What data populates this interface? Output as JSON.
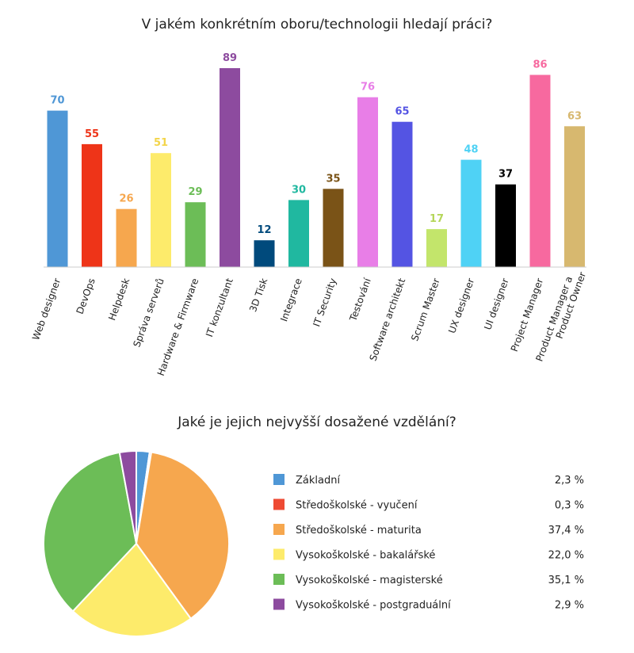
{
  "chart_data": [
    {
      "type": "bar",
      "title": "V jakém konkrétním oboru/technologii hledají práci?",
      "categories": [
        "Web designer",
        "DevOps",
        "Helpdesk",
        "Správa serverů",
        "Hardware & Firmware",
        "IT konzultant",
        "3D Tisk",
        "Integrace",
        "IT Security",
        "Testování",
        "Software architekt",
        "Scrum Master",
        "UX designer",
        "UI designer",
        "Project Manager",
        "Product Manager a Product Owner"
      ],
      "values": [
        70,
        55,
        26,
        51,
        29,
        89,
        12,
        30,
        35,
        76,
        65,
        17,
        48,
        37,
        86,
        63
      ],
      "colors": [
        "#4f97d6",
        "#ee3418",
        "#f6a74e",
        "#fdeb6b",
        "#6cbd57",
        "#8d4b9f",
        "#004a7c",
        "#20b8a0",
        "#7a5317",
        "#e87ee7",
        "#5454e3",
        "#c3e56b",
        "#4fd2f5",
        "#000000",
        "#f7699f",
        "#d7b86f"
      ],
      "label_colors": [
        "#4f97d6",
        "#ee3418",
        "#f6a74e",
        "#f3d54a",
        "#6cbd57",
        "#8d4b9f",
        "#004a7c",
        "#20b8a0",
        "#7a5317",
        "#e87ee7",
        "#5454e3",
        "#b5d65a",
        "#4fd2f5",
        "#000000",
        "#f7699f",
        "#d7b86f"
      ],
      "ylim": [
        0,
        89
      ],
      "xlabel": "",
      "ylabel": ""
    },
    {
      "type": "pie",
      "title": "Jaké je jejich nejvyšší dosažené vzdělání?",
      "categories": [
        "Základní",
        "Středoškolské - vyučení",
        "Středoškolské - maturita",
        "Vysokoškolské - bakalářské",
        "Vysokoškolské - magisterské",
        "Vysokoškolské - postgraduální"
      ],
      "values": [
        2.3,
        0.3,
        37.4,
        22.0,
        35.1,
        2.9
      ],
      "value_labels": [
        "2,3 %",
        "0,3 %",
        "37,4 %",
        "22,0 %",
        "35,1 %",
        "2,9 %"
      ],
      "colors": [
        "#4f97d6",
        "#ee4a33",
        "#f6a74e",
        "#fdeb6b",
        "#6cbd57",
        "#8d4b9f"
      ],
      "legend_position": "right"
    }
  ]
}
